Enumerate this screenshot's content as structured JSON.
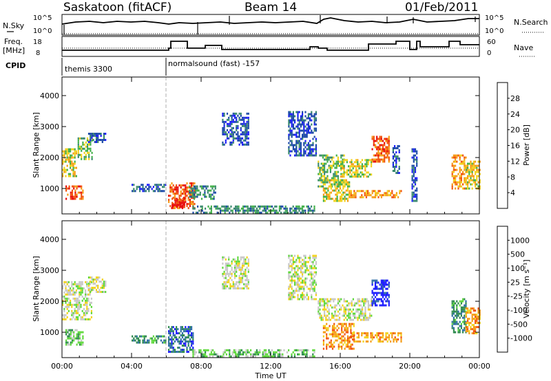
{
  "header": {
    "station": "Saskatoon (fitACF)",
    "beam": "Beam 14",
    "date": "01/Feb/2011"
  },
  "top_panels": {
    "nsky_label": "N.Sky",
    "nsky_ticks": [
      "10^5",
      "10^0"
    ],
    "nsearch_label": "N.Search",
    "freq_label_line1": "Freq.",
    "freq_label_line2": "[MHz]",
    "freq_ticks": [
      "18",
      "8"
    ],
    "nave_ticks": [
      "60",
      "0"
    ],
    "nave_label": "Nave",
    "cpid_label": "CPID",
    "cpid_modes": [
      {
        "name": "themis 3300",
        "start_hour": 0
      },
      {
        "name": "normalsound (fast) -157",
        "start_hour": 6
      }
    ]
  },
  "chart_data": [
    {
      "type": "heatmap",
      "panel": "power",
      "ylabel": "Slant Range [km]",
      "yticks": [
        "1000",
        "2000",
        "3000",
        "4000"
      ],
      "ylim": [
        180,
        4600
      ],
      "xlim_hours": [
        0,
        24
      ],
      "colorbar": {
        "label": "Power [dB]",
        "ticks": [
          "4",
          "8",
          "12",
          "16",
          "20",
          "24",
          "28"
        ],
        "colors": [
          "#1c1cff",
          "#1d4aa8",
          "#3a8a6e",
          "#43b04a",
          "#f2d21b",
          "#f59c16",
          "#f2540e",
          "#e80e0e"
        ]
      },
      "regions": [
        {
          "t0": 0.0,
          "t1": 0.8,
          "r0": 1400,
          "r1": 2300,
          "level": 4
        },
        {
          "t0": 0.2,
          "t1": 1.2,
          "r0": 650,
          "r1": 1100,
          "level": 6
        },
        {
          "t0": 0.9,
          "t1": 1.7,
          "r0": 1950,
          "r1": 2650,
          "level": 3
        },
        {
          "t0": 1.5,
          "t1": 2.5,
          "r0": 2500,
          "r1": 2800,
          "level": 1
        },
        {
          "t0": 4.0,
          "t1": 6.0,
          "r0": 900,
          "r1": 1150,
          "level": 1
        },
        {
          "t0": 6.1,
          "t1": 7.6,
          "r0": 350,
          "r1": 1200,
          "level": 6
        },
        {
          "t0": 6.3,
          "t1": 7.0,
          "r0": 400,
          "r1": 700,
          "level": 7
        },
        {
          "t0": 7.3,
          "t1": 8.8,
          "r0": 700,
          "r1": 1100,
          "level": 2
        },
        {
          "t0": 7.5,
          "t1": 14.5,
          "r0": 200,
          "r1": 450,
          "level": 2
        },
        {
          "t0": 9.2,
          "t1": 10.7,
          "r0": 2400,
          "r1": 3450,
          "level": 1
        },
        {
          "t0": 13.0,
          "t1": 14.6,
          "r0": 2100,
          "r1": 3500,
          "level": 1
        },
        {
          "t0": 14.7,
          "t1": 16.2,
          "r0": 1100,
          "r1": 2100,
          "level": 3
        },
        {
          "t0": 15.0,
          "t1": 16.5,
          "r0": 600,
          "r1": 1300,
          "level": 4
        },
        {
          "t0": 16.0,
          "t1": 17.8,
          "r0": 1400,
          "r1": 1950,
          "level": 4
        },
        {
          "t0": 17.8,
          "t1": 18.8,
          "r0": 1900,
          "r1": 2700,
          "level": 6
        },
        {
          "t0": 16.5,
          "t1": 19.5,
          "r0": 700,
          "r1": 950,
          "level": 5
        },
        {
          "t0": 19.0,
          "t1": 19.4,
          "r0": 1500,
          "r1": 2400,
          "level": 1
        },
        {
          "t0": 20.1,
          "t1": 20.4,
          "r0": 600,
          "r1": 2300,
          "level": 1
        },
        {
          "t0": 22.4,
          "t1": 23.2,
          "r0": 1000,
          "r1": 2100,
          "level": 5
        },
        {
          "t0": 23.2,
          "t1": 24.0,
          "r0": 1000,
          "r1": 1900,
          "level": 4
        }
      ]
    },
    {
      "type": "heatmap",
      "panel": "velocity",
      "ylabel": "Slant Range [km]",
      "yticks": [
        "1000",
        "2000",
        "3000",
        "4000"
      ],
      "ylim": [
        180,
        4600
      ],
      "xlim_hours": [
        0,
        24
      ],
      "xticks": [
        "00:00",
        "04:00",
        "08:00",
        "12:00",
        "16:00",
        "20:00",
        "00:00"
      ],
      "xlabel": "Time UT",
      "colorbar": {
        "label": "Velocity [m s⁻¹]",
        "ticks": [
          "1000",
          "500",
          "100",
          "25",
          "-25",
          "-100",
          "-500",
          "-1000"
        ],
        "colors": [
          "#1c1cff",
          "#2e6da5",
          "#2e8a4e",
          "#5fd93c",
          "#c8c8c8",
          "#f2d21b",
          "#f59c16",
          "#f2540e",
          "#e80e0e"
        ]
      },
      "regions": [
        {
          "t0": 0.0,
          "t1": 1.7,
          "r0": 1400,
          "r1": 2650,
          "level": 4
        },
        {
          "t0": 0.2,
          "t1": 1.2,
          "r0": 600,
          "r1": 1100,
          "level": 3
        },
        {
          "t0": 1.5,
          "t1": 2.5,
          "r0": 2300,
          "r1": 2800,
          "level": 4
        },
        {
          "t0": 4.0,
          "t1": 6.0,
          "r0": 700,
          "r1": 900,
          "level": 2
        },
        {
          "t0": 6.1,
          "t1": 7.5,
          "r0": 350,
          "r1": 1200,
          "level": 1
        },
        {
          "t0": 7.5,
          "t1": 14.5,
          "r0": 200,
          "r1": 450,
          "level": 3
        },
        {
          "t0": 9.2,
          "t1": 10.7,
          "r0": 2400,
          "r1": 3450,
          "level": 4
        },
        {
          "t0": 13.0,
          "t1": 14.6,
          "r0": 2100,
          "r1": 3500,
          "level": 4
        },
        {
          "t0": 14.7,
          "t1": 17.8,
          "r0": 1400,
          "r1": 2100,
          "level": 4
        },
        {
          "t0": 15.0,
          "t1": 16.8,
          "r0": 500,
          "r1": 1300,
          "level": 6
        },
        {
          "t0": 16.5,
          "t1": 19.5,
          "r0": 700,
          "r1": 1000,
          "level": 6
        },
        {
          "t0": 17.8,
          "t1": 18.8,
          "r0": 1900,
          "r1": 2700,
          "level": 0
        },
        {
          "t0": 22.4,
          "t1": 23.2,
          "r0": 1000,
          "r1": 2100,
          "level": 2
        },
        {
          "t0": 23.2,
          "t1": 24.0,
          "r0": 1000,
          "r1": 1800,
          "level": 6
        }
      ]
    }
  ]
}
